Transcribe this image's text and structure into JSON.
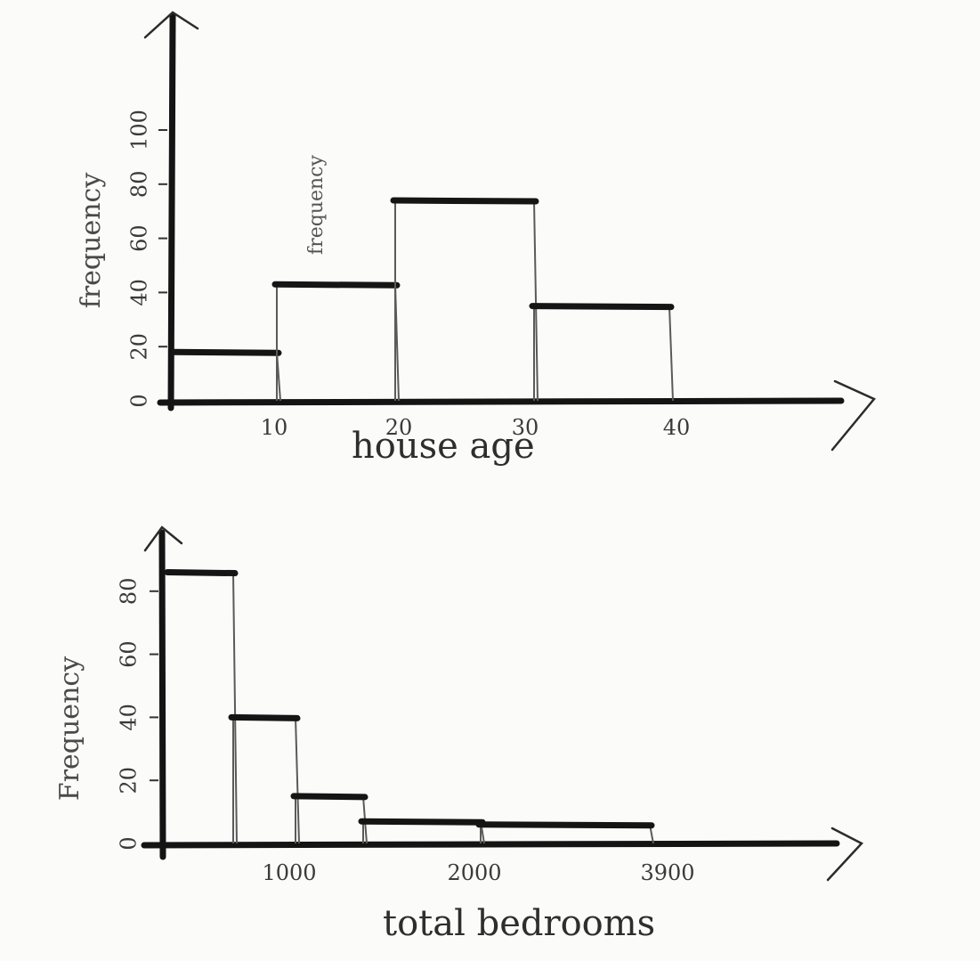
{
  "chart_data": [
    {
      "type": "bar",
      "histogram": true,
      "xlabel": "house age",
      "ylabel": "frequency",
      "inner_note": "frequency",
      "bins": [
        [
          0,
          10
        ],
        [
          10,
          20
        ],
        [
          20,
          30
        ],
        [
          30,
          40
        ]
      ],
      "values": [
        18,
        43,
        74,
        35
      ],
      "x_ticks": [
        "10",
        "20",
        "30",
        "40"
      ],
      "y_ticks": [
        "0",
        "20",
        "40",
        "60",
        "80",
        "100"
      ],
      "ylim": [
        0,
        100
      ],
      "grid": false
    },
    {
      "type": "bar",
      "histogram": true,
      "xlabel": "total bedrooms",
      "ylabel": "Frequency",
      "bins": [
        [
          0,
          500
        ],
        [
          500,
          950
        ],
        [
          950,
          1400
        ],
        [
          1400,
          2600
        ],
        [
          2600,
          3900
        ]
      ],
      "values": [
        86,
        40,
        15,
        7,
        6
      ],
      "x_ticks": [
        "1000",
        "2000",
        "3900"
      ],
      "y_ticks": [
        "0",
        "20",
        "40",
        "60",
        "80"
      ],
      "ylim": [
        0,
        100
      ],
      "grid": false
    }
  ]
}
